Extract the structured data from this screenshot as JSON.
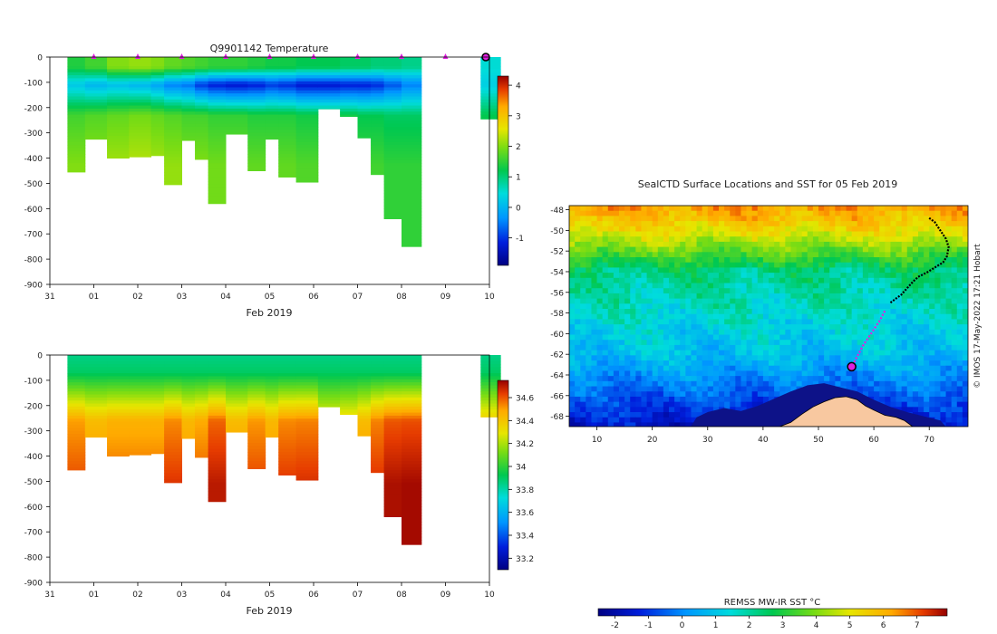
{
  "chart_data": [
    {
      "type": "heatmap",
      "name": "temperature-section",
      "title": "Q9901142  Temperature",
      "xlabel": "Feb 2019",
      "ylabel": "",
      "x_ticks": [
        "31",
        "01",
        "02",
        "03",
        "04",
        "05",
        "06",
        "07",
        "08",
        "09",
        "10"
      ],
      "xlim": [
        31,
        41
      ],
      "ylim": [
        -900,
        0
      ],
      "y_ticks": [
        0,
        -100,
        -200,
        -300,
        -400,
        -500,
        -600,
        -700,
        -800,
        -900
      ],
      "colorbar": {
        "min": -1.9,
        "max": 4.3,
        "ticks": [
          4,
          3,
          2,
          1,
          0,
          -1
        ]
      },
      "profile_markers_day": [
        32,
        33,
        34,
        35,
        36,
        37,
        38,
        39,
        40
      ],
      "current_position_day": 41,
      "profiles": [
        {
          "day": 31.4,
          "depth": -455,
          "surface": 1.4,
          "min": 0.2,
          "deep": 2.0
        },
        {
          "day": 31.8,
          "depth": -325,
          "surface": 1.6,
          "min": 0.0,
          "deep": 2.1
        },
        {
          "day": 32.3,
          "depth": -400,
          "surface": 2.0,
          "min": 0.1,
          "deep": 2.2
        },
        {
          "day": 32.8,
          "depth": -395,
          "surface": 2.1,
          "min": 0.0,
          "deep": 2.3
        },
        {
          "day": 33.3,
          "depth": -390,
          "surface": 2.0,
          "min": -0.2,
          "deep": 2.2
        },
        {
          "day": 33.6,
          "depth": -505,
          "surface": 1.8,
          "min": -0.5,
          "deep": 2.1
        },
        {
          "day": 34.0,
          "depth": -330,
          "surface": 1.7,
          "min": -0.6,
          "deep": 2.0
        },
        {
          "day": 34.3,
          "depth": -405,
          "surface": 1.6,
          "min": -1.0,
          "deep": 2.0
        },
        {
          "day": 34.6,
          "depth": -580,
          "surface": 1.5,
          "min": -1.2,
          "deep": 1.9
        },
        {
          "day": 35.0,
          "depth": -305,
          "surface": 1.5,
          "min": -1.3,
          "deep": 1.9
        },
        {
          "day": 35.5,
          "depth": -450,
          "surface": 1.4,
          "min": -1.2,
          "deep": 1.8
        },
        {
          "day": 35.9,
          "depth": -325,
          "surface": 1.3,
          "min": -1.0,
          "deep": 1.8
        },
        {
          "day": 36.2,
          "depth": -475,
          "surface": 1.3,
          "min": -1.1,
          "deep": 1.8
        },
        {
          "day": 36.6,
          "depth": -495,
          "surface": 1.2,
          "min": -1.3,
          "deep": 1.7
        },
        {
          "day": 37.1,
          "depth": -205,
          "surface": 1.2,
          "min": -1.3,
          "deep": 1.7
        },
        {
          "day": 37.6,
          "depth": -235,
          "surface": 1.1,
          "min": -1.2,
          "deep": 1.7
        },
        {
          "day": 38.0,
          "depth": -320,
          "surface": 1.1,
          "min": -1.2,
          "deep": 1.6
        },
        {
          "day": 38.3,
          "depth": -465,
          "surface": 1.0,
          "min": -1.1,
          "deep": 1.6
        },
        {
          "day": 38.6,
          "depth": -640,
          "surface": 1.0,
          "min": -0.8,
          "deep": 1.5
        },
        {
          "day": 39.0,
          "depth": -750,
          "surface": 0.9,
          "min": -0.5,
          "deep": 1.5
        },
        {
          "day": 40.8,
          "depth": -245,
          "surface": 0.5,
          "min": 0.3,
          "deep": 1.6
        }
      ]
    },
    {
      "type": "heatmap",
      "name": "salinity-section",
      "title": "",
      "xlabel": "Feb 2019",
      "ylabel": "",
      "x_ticks": [
        "31",
        "01",
        "02",
        "03",
        "04",
        "05",
        "06",
        "07",
        "08",
        "09",
        "10"
      ],
      "xlim": [
        31,
        41
      ],
      "ylim": [
        -900,
        0
      ],
      "y_ticks": [
        0,
        -100,
        -200,
        -300,
        -400,
        -500,
        -600,
        -700,
        -800,
        -900
      ],
      "colorbar": {
        "min": 33.1,
        "max": 34.75,
        "ticks": [
          34.6,
          34.4,
          34.2,
          34,
          33.8,
          33.6,
          33.4,
          33.2
        ]
      },
      "profiles": [
        {
          "day": 31.4,
          "depth": -455,
          "surface": 33.85,
          "deep": 34.62
        },
        {
          "day": 31.8,
          "depth": -325,
          "surface": 33.85,
          "deep": 34.55
        },
        {
          "day": 32.3,
          "depth": -400,
          "surface": 33.85,
          "deep": 34.58
        },
        {
          "day": 32.8,
          "depth": -395,
          "surface": 33.85,
          "deep": 34.58
        },
        {
          "day": 33.3,
          "depth": -390,
          "surface": 33.85,
          "deep": 34.58
        },
        {
          "day": 33.6,
          "depth": -505,
          "surface": 33.85,
          "deep": 34.65
        },
        {
          "day": 34.0,
          "depth": -330,
          "surface": 33.85,
          "deep": 34.56
        },
        {
          "day": 34.3,
          "depth": -405,
          "surface": 33.85,
          "deep": 34.6
        },
        {
          "day": 34.6,
          "depth": -580,
          "surface": 33.85,
          "deep": 34.7
        },
        {
          "day": 35.0,
          "depth": -305,
          "surface": 33.85,
          "deep": 34.55
        },
        {
          "day": 35.5,
          "depth": -450,
          "surface": 33.85,
          "deep": 34.63
        },
        {
          "day": 35.9,
          "depth": -325,
          "surface": 33.85,
          "deep": 34.56
        },
        {
          "day": 36.2,
          "depth": -475,
          "surface": 33.85,
          "deep": 34.65
        },
        {
          "day": 36.6,
          "depth": -495,
          "surface": 33.85,
          "deep": 34.66
        },
        {
          "day": 37.1,
          "depth": -205,
          "surface": 33.85,
          "deep": 34.45
        },
        {
          "day": 37.6,
          "depth": -235,
          "surface": 33.85,
          "deep": 34.48
        },
        {
          "day": 38.0,
          "depth": -320,
          "surface": 33.85,
          "deep": 34.55
        },
        {
          "day": 38.3,
          "depth": -465,
          "surface": 33.85,
          "deep": 34.66
        },
        {
          "day": 38.6,
          "depth": -640,
          "surface": 33.85,
          "deep": 34.72
        },
        {
          "day": 39.0,
          "depth": -750,
          "surface": 33.85,
          "deep": 34.73
        },
        {
          "day": 40.8,
          "depth": -245,
          "surface": 33.85,
          "deep": 34.5
        }
      ]
    },
    {
      "type": "heatmap",
      "name": "sst-map",
      "title": "SealCTD Surface Locations and SST for 05 Feb 2019",
      "xlabel": "",
      "ylabel": "",
      "xlim": [
        5,
        77
      ],
      "ylim": [
        -69,
        -47.6
      ],
      "x_ticks": [
        10,
        20,
        30,
        40,
        50,
        60,
        70
      ],
      "y_ticks": [
        -48,
        -50,
        -52,
        -54,
        -56,
        -58,
        -60,
        -62,
        -64,
        -66,
        -68
      ],
      "colorbar": {
        "label": "REMSS MW-IR SST °C",
        "min": -2.5,
        "max": 7.9,
        "ticks": [
          -2,
          -1,
          0,
          1,
          2,
          3,
          4,
          5,
          6,
          7
        ]
      },
      "credit": "© IMOS 17-May-2022 17:21 Hobart",
      "track_past": [
        [
          70,
          -48.8
        ],
        [
          71,
          -49.2
        ],
        [
          72,
          -50
        ],
        [
          73,
          -50.8
        ],
        [
          73.5,
          -51.6
        ],
        [
          73.2,
          -52.5
        ],
        [
          72.5,
          -53.1
        ],
        [
          71,
          -53.6
        ],
        [
          69.5,
          -54.1
        ],
        [
          68,
          -54.5
        ],
        [
          67,
          -55
        ],
        [
          66,
          -55.6
        ],
        [
          65,
          -56.2
        ],
        [
          64,
          -56.6
        ],
        [
          63,
          -57.0
        ]
      ],
      "track_recent": [
        [
          62,
          -57.8
        ],
        [
          61,
          -58.8
        ],
        [
          60,
          -59.6
        ],
        [
          59,
          -60.4
        ],
        [
          58,
          -61.2
        ],
        [
          57,
          -62.2
        ],
        [
          56,
          -63.2
        ]
      ],
      "current_position": [
        56,
        -63.2
      ],
      "land": [
        [
          43,
          -69
        ],
        [
          45,
          -68.6
        ],
        [
          47,
          -67.8
        ],
        [
          49,
          -67.1
        ],
        [
          51,
          -66.6
        ],
        [
          53,
          -66.2
        ],
        [
          55,
          -66.1
        ],
        [
          57,
          -66.4
        ],
        [
          58.5,
          -67.0
        ],
        [
          60,
          -67.4
        ],
        [
          62,
          -67.9
        ],
        [
          64,
          -68.1
        ],
        [
          65.5,
          -68.4
        ],
        [
          67,
          -69
        ]
      ],
      "ice_shelf": [
        [
          27,
          -69
        ],
        [
          28,
          -68.1
        ],
        [
          30,
          -67.6
        ],
        [
          33,
          -67.2
        ],
        [
          36,
          -67.5
        ],
        [
          39,
          -67.0
        ],
        [
          42,
          -66.3
        ],
        [
          45,
          -65.6
        ],
        [
          48,
          -65.0
        ],
        [
          51,
          -64.8
        ],
        [
          54,
          -65.2
        ],
        [
          57,
          -65.6
        ],
        [
          60,
          -66.4
        ],
        [
          63,
          -67.1
        ],
        [
          66,
          -67.6
        ],
        [
          69,
          -68.0
        ],
        [
          72,
          -68.4
        ],
        [
          73,
          -69
        ]
      ]
    }
  ]
}
